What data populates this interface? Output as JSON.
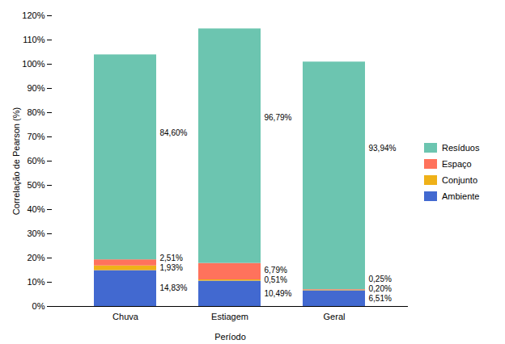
{
  "chart_data": {
    "type": "bar",
    "stacked": true,
    "xlabel": "Período",
    "ylabel": "Correlação de Pearson (%)",
    "categories": [
      "Chuva",
      "Estiagem",
      "Geral"
    ],
    "series": [
      {
        "name": "Ambiente",
        "values": [
          14.83,
          10.49,
          6.51
        ],
        "value_labels": [
          "14,83%",
          "10,49%",
          "6,51%"
        ]
      },
      {
        "name": "Conjunto",
        "values": [
          1.93,
          0.51,
          0.2
        ],
        "value_labels": [
          "1,93%",
          "0,51%",
          "0,20%"
        ]
      },
      {
        "name": "Espaço",
        "values": [
          2.51,
          6.79,
          0.25
        ],
        "value_labels": [
          "2,51%",
          "6,79%",
          "0,25%"
        ]
      },
      {
        "name": "Resíduos",
        "values": [
          84.6,
          96.79,
          93.94
        ],
        "value_labels": [
          "84,60%",
          "96,79%",
          "93,94%"
        ]
      }
    ],
    "ylim": [
      0,
      120
    ],
    "yticks": [
      {
        "value": 0,
        "label": "0%"
      },
      {
        "value": 10,
        "label": "10%"
      },
      {
        "value": 20,
        "label": "20%"
      },
      {
        "value": 30,
        "label": "30%"
      },
      {
        "value": 40,
        "label": "40%"
      },
      {
        "value": 50,
        "label": "50%"
      },
      {
        "value": 60,
        "label": "60%"
      },
      {
        "value": 70,
        "label": "70%"
      },
      {
        "value": 80,
        "label": "80%"
      },
      {
        "value": 90,
        "label": "90%"
      },
      {
        "value": 100,
        "label": "100%"
      },
      {
        "value": 110,
        "label": "110%"
      },
      {
        "value": 120,
        "label": "120%"
      }
    ],
    "grid": false,
    "legend": "right",
    "data_labels": true
  }
}
